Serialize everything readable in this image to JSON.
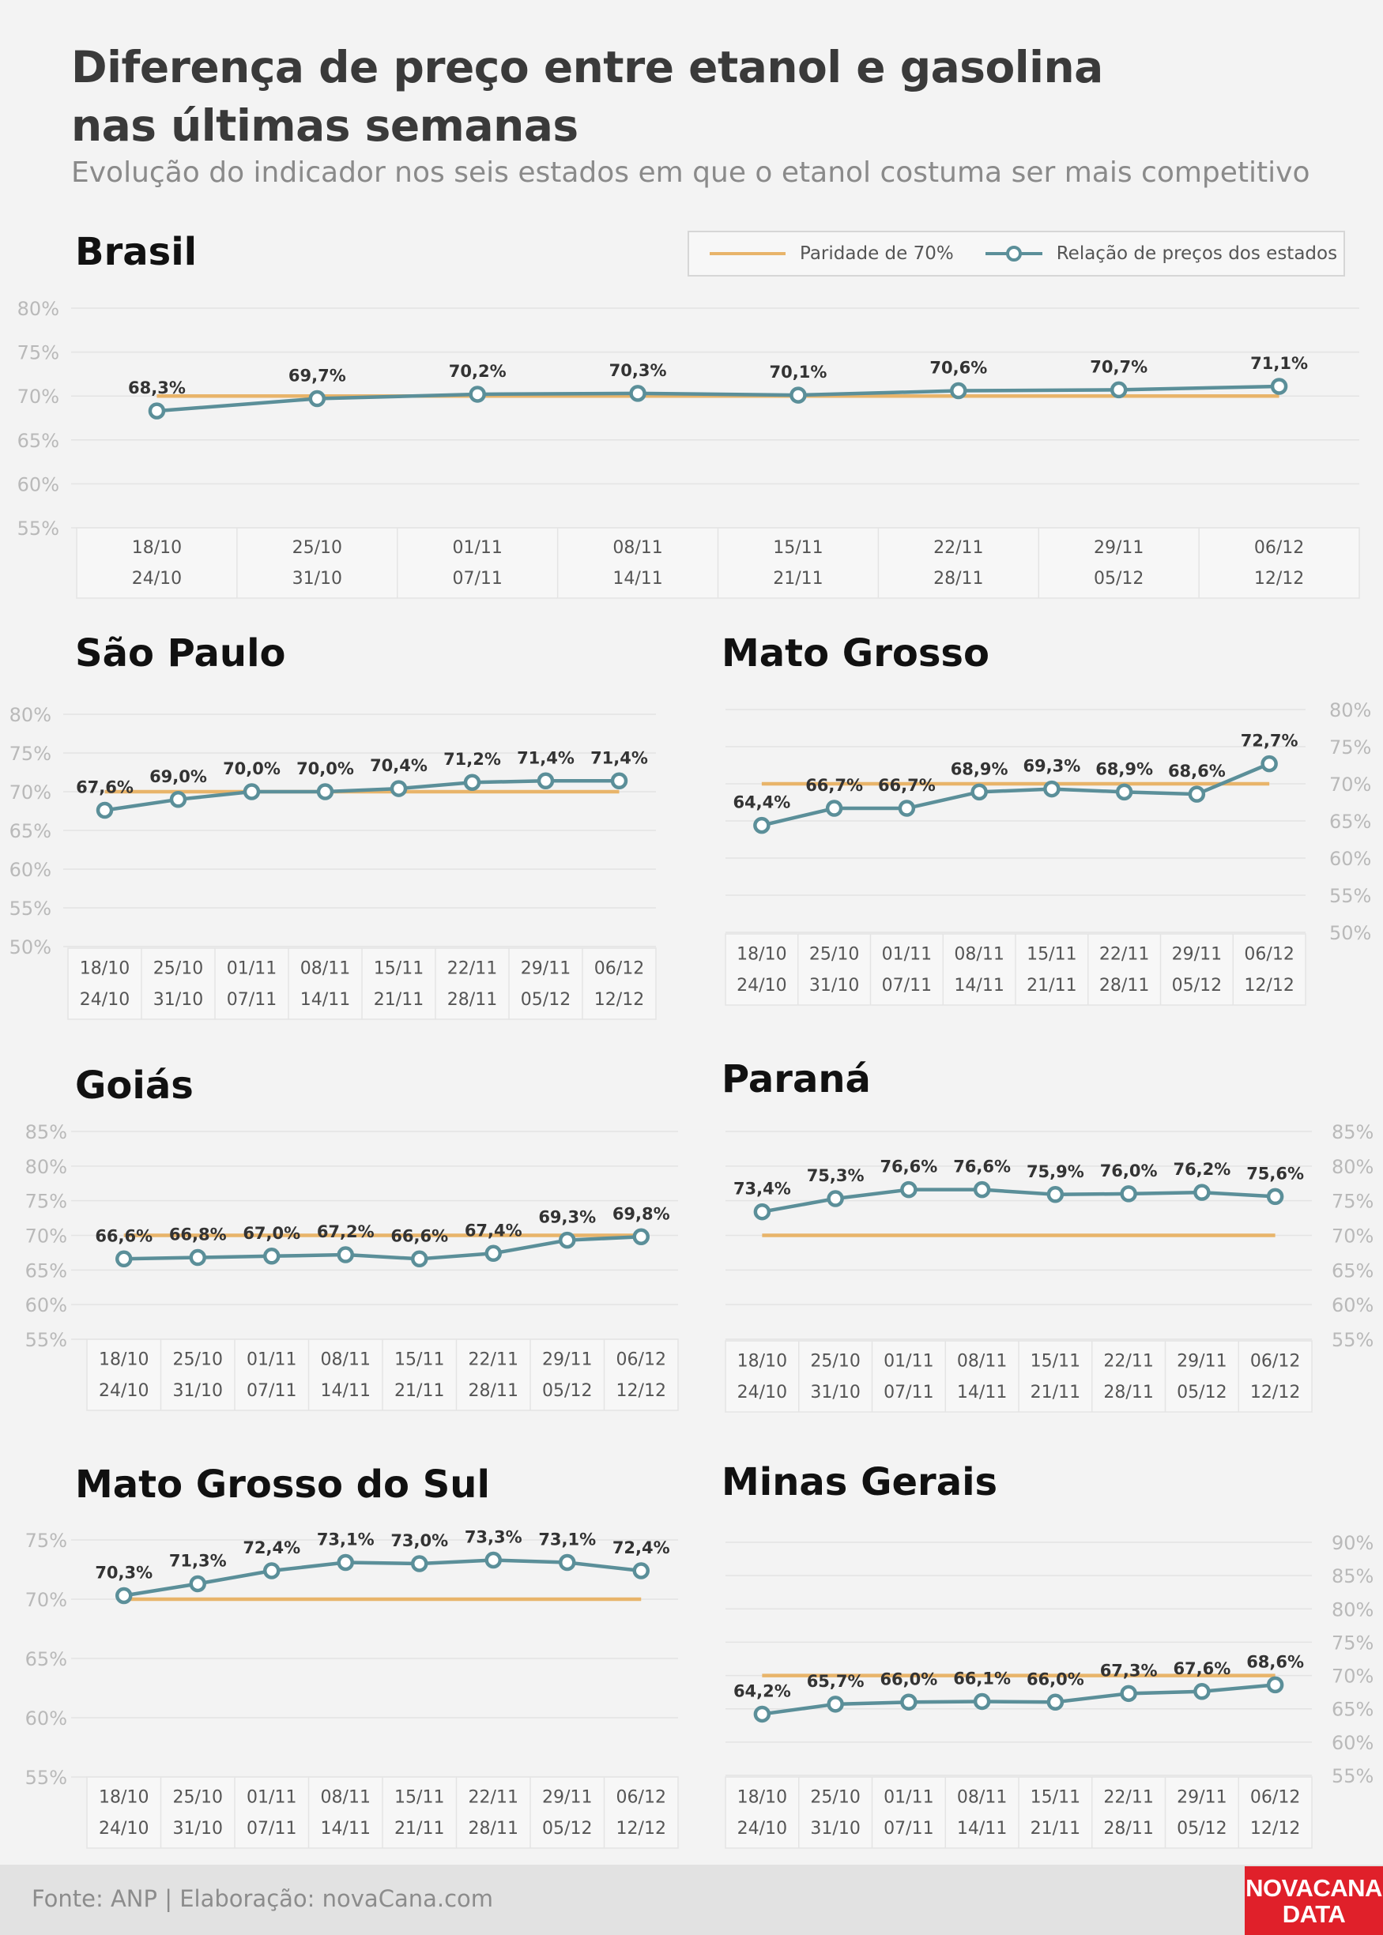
{
  "header": {
    "title_line1": "Diferença de preço entre etanol e gasolina",
    "title_line2": "nas últimas semanas",
    "subtitle": "Evolução do indicador nos seis estados em que o etanol costuma ser mais competitivo"
  },
  "legend": {
    "parity_label": "Paridade de 70%",
    "ratio_label": "Relação de preços dos estados"
  },
  "colors": {
    "parity": "#e8b46a",
    "ratio": "#5b8f99",
    "marker_fill": "#ffffff",
    "grid": "#e3e3e3",
    "tick_text": "#b9b9b9",
    "value_text": "#333333",
    "title_text": "#111111"
  },
  "footer": {
    "source": "Fonte: ANP | Elaboração: novaCana.com",
    "logo_line1": "NOVACANA",
    "logo_line2": "DATA"
  },
  "chart_data": [
    {
      "type": "line",
      "title": "Brasil",
      "categories": [
        [
          "18/10",
          "24/10"
        ],
        [
          "25/10",
          "31/10"
        ],
        [
          "01/11",
          "07/11"
        ],
        [
          "08/11",
          "14/11"
        ],
        [
          "15/11",
          "21/11"
        ],
        [
          "22/11",
          "28/11"
        ],
        [
          "29/11",
          "05/12"
        ],
        [
          "06/12",
          "12/12"
        ]
      ],
      "series": [
        {
          "name": "Relação de preços dos estados",
          "values": [
            68.3,
            69.7,
            70.2,
            70.3,
            70.1,
            70.6,
            70.7,
            71.1
          ],
          "labels": [
            "68,3%",
            "69,7%",
            "70,2%",
            "70,3%",
            "70,1%",
            "70,6%",
            "70,7%",
            "71,1%"
          ]
        },
        {
          "name": "Paridade de 70%",
          "values": [
            70,
            70,
            70,
            70,
            70,
            70,
            70,
            70
          ]
        }
      ],
      "yticks": [
        "80%",
        "75%",
        "70%",
        "65%",
        "60%",
        "55%"
      ],
      "ylim": [
        55,
        80
      ],
      "yaxis_side": "left",
      "grid": true
    },
    {
      "type": "line",
      "title": "São Paulo",
      "categories": [
        [
          "18/10",
          "24/10"
        ],
        [
          "25/10",
          "31/10"
        ],
        [
          "01/11",
          "07/11"
        ],
        [
          "08/11",
          "14/11"
        ],
        [
          "15/11",
          "21/11"
        ],
        [
          "22/11",
          "28/11"
        ],
        [
          "29/11",
          "05/12"
        ],
        [
          "06/12",
          "12/12"
        ]
      ],
      "series": [
        {
          "name": "Relação de preços dos estados",
          "values": [
            67.6,
            69.0,
            70.0,
            70.0,
            70.4,
            71.2,
            71.4,
            71.4
          ],
          "labels": [
            "67,6%",
            "69,0%",
            "70,0%",
            "70,0%",
            "70,4%",
            "71,2%",
            "71,4%",
            "71,4%"
          ]
        },
        {
          "name": "Paridade de 70%",
          "values": [
            70,
            70,
            70,
            70,
            70,
            70,
            70,
            70
          ]
        }
      ],
      "yticks": [
        "80%",
        "75%",
        "70%",
        "65%",
        "60%",
        "55%",
        "50%"
      ],
      "ylim": [
        50,
        80
      ],
      "yaxis_side": "left",
      "grid": true
    },
    {
      "type": "line",
      "title": "Mato Grosso",
      "categories": [
        [
          "18/10",
          "24/10"
        ],
        [
          "25/10",
          "31/10"
        ],
        [
          "01/11",
          "07/11"
        ],
        [
          "08/11",
          "14/11"
        ],
        [
          "15/11",
          "21/11"
        ],
        [
          "22/11",
          "28/11"
        ],
        [
          "29/11",
          "05/12"
        ],
        [
          "06/12",
          "12/12"
        ]
      ],
      "series": [
        {
          "name": "Relação de preços dos estados",
          "values": [
            64.4,
            66.7,
            66.7,
            68.9,
            69.3,
            68.9,
            68.6,
            72.7
          ],
          "labels": [
            "64,4%",
            "66,7%",
            "66,7%",
            "68,9%",
            "69,3%",
            "68,9%",
            "68,6%",
            "72,7%"
          ]
        },
        {
          "name": "Paridade de 70%",
          "values": [
            70,
            70,
            70,
            70,
            70,
            70,
            70,
            70
          ]
        }
      ],
      "yticks": [
        "80%",
        "75%",
        "70%",
        "65%",
        "60%",
        "55%",
        "50%"
      ],
      "ylim": [
        50,
        80
      ],
      "yaxis_side": "right",
      "grid": true
    },
    {
      "type": "line",
      "title": "Goiás",
      "categories": [
        [
          "18/10",
          "24/10"
        ],
        [
          "25/10",
          "31/10"
        ],
        [
          "01/11",
          "07/11"
        ],
        [
          "08/11",
          "14/11"
        ],
        [
          "15/11",
          "21/11"
        ],
        [
          "22/11",
          "28/11"
        ],
        [
          "29/11",
          "05/12"
        ],
        [
          "06/12",
          "12/12"
        ]
      ],
      "series": [
        {
          "name": "Relação de preços dos estados",
          "values": [
            66.6,
            66.8,
            67.0,
            67.2,
            66.6,
            67.4,
            69.3,
            69.8
          ],
          "labels": [
            "66,6%",
            "66,8%",
            "67,0%",
            "67,2%",
            "66,6%",
            "67,4%",
            "69,3%",
            "69,8%"
          ]
        },
        {
          "name": "Paridade de 70%",
          "values": [
            70,
            70,
            70,
            70,
            70,
            70,
            70,
            70
          ]
        }
      ],
      "yticks": [
        "85%",
        "80%",
        "75%",
        "70%",
        "65%",
        "60%",
        "55%"
      ],
      "ylim": [
        55,
        85
      ],
      "yaxis_side": "left",
      "grid": true
    },
    {
      "type": "line",
      "title": "Paraná",
      "categories": [
        [
          "18/10",
          "24/10"
        ],
        [
          "25/10",
          "31/10"
        ],
        [
          "01/11",
          "07/11"
        ],
        [
          "08/11",
          "14/11"
        ],
        [
          "15/11",
          "21/11"
        ],
        [
          "22/11",
          "28/11"
        ],
        [
          "29/11",
          "05/12"
        ],
        [
          "06/12",
          "12/12"
        ]
      ],
      "series": [
        {
          "name": "Relação de preços dos estados",
          "values": [
            73.4,
            75.3,
            76.6,
            76.6,
            75.9,
            76.0,
            76.2,
            75.6
          ],
          "labels": [
            "73,4%",
            "75,3%",
            "76,6%",
            "76,6%",
            "75,9%",
            "76,0%",
            "76,2%",
            "75,6%"
          ]
        },
        {
          "name": "Paridade de 70%",
          "values": [
            70,
            70,
            70,
            70,
            70,
            70,
            70,
            70
          ]
        }
      ],
      "yticks": [
        "85%",
        "80%",
        "75%",
        "70%",
        "65%",
        "60%",
        "55%"
      ],
      "ylim": [
        55,
        85
      ],
      "yaxis_side": "right",
      "grid": true
    },
    {
      "type": "line",
      "title": "Mato Grosso do Sul",
      "categories": [
        [
          "18/10",
          "24/10"
        ],
        [
          "25/10",
          "31/10"
        ],
        [
          "01/11",
          "07/11"
        ],
        [
          "08/11",
          "14/11"
        ],
        [
          "15/11",
          "21/11"
        ],
        [
          "22/11",
          "28/11"
        ],
        [
          "29/11",
          "05/12"
        ],
        [
          "06/12",
          "12/12"
        ]
      ],
      "series": [
        {
          "name": "Relação de preços dos estados",
          "values": [
            70.3,
            71.3,
            72.4,
            73.1,
            73.0,
            73.3,
            73.1,
            72.4
          ],
          "labels": [
            "70,3%",
            "71,3%",
            "72,4%",
            "73,1%",
            "73,0%",
            "73,3%",
            "73,1%",
            "72,4%"
          ]
        },
        {
          "name": "Paridade de 70%",
          "values": [
            70,
            70,
            70,
            70,
            70,
            70,
            70,
            70
          ]
        }
      ],
      "yticks": [
        "75%",
        "70%",
        "65%",
        "60%",
        "55%"
      ],
      "ylim": [
        55,
        75
      ],
      "yaxis_side": "left",
      "grid": true
    },
    {
      "type": "line",
      "title": "Minas Gerais",
      "categories": [
        [
          "18/10",
          "24/10"
        ],
        [
          "25/10",
          "31/10"
        ],
        [
          "01/11",
          "07/11"
        ],
        [
          "08/11",
          "14/11"
        ],
        [
          "15/11",
          "21/11"
        ],
        [
          "22/11",
          "28/11"
        ],
        [
          "29/11",
          "05/12"
        ],
        [
          "06/12",
          "12/12"
        ]
      ],
      "series": [
        {
          "name": "Relação de preços dos estados",
          "values": [
            64.2,
            65.7,
            66.0,
            66.1,
            66.0,
            67.3,
            67.6,
            68.6
          ],
          "labels": [
            "64,2%",
            "65,7%",
            "66,0%",
            "66,1%",
            "66,0%",
            "67,3%",
            "67,6%",
            "68,6%"
          ]
        },
        {
          "name": "Paridade de 70%",
          "values": [
            70,
            70,
            70,
            70,
            70,
            70,
            70,
            70
          ]
        }
      ],
      "yticks": [
        "90%",
        "85%",
        "80%",
        "75%",
        "70%",
        "65%",
        "60%",
        "55%"
      ],
      "ylim": [
        55,
        90
      ],
      "yaxis_side": "right",
      "grid": true
    }
  ]
}
